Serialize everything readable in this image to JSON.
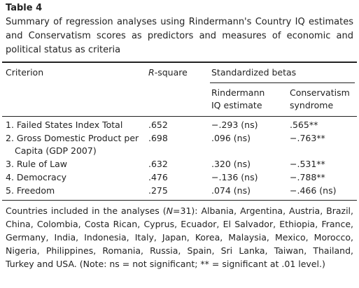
{
  "label": "Table 4",
  "caption": "Summary of regression analyses using Rindermann's Country IQ estimates and Conservatism scores as predictors and measures of economic and political status as criteria",
  "table": {
    "headers": {
      "criterion": "Criterion",
      "r_symbol": "R",
      "r_rest": "-square",
      "betas": "Standardized betas",
      "beta_iq": "Rindermann IQ estimate",
      "beta_cons": "Conservatism syndrome"
    },
    "rows": [
      [
        "1. Failed States Index Total",
        ".652",
        "−.293 (ns)",
        ".565**"
      ],
      [
        "2. Gross Domestic Product per Capita (GDP 2007)",
        ".698",
        ".096 (ns)",
        "−.763**"
      ],
      [
        "3. Rule of Law",
        ".632",
        ".320 (ns)",
        "−.531**"
      ],
      [
        "4. Democracy",
        ".476",
        "−.136 (ns)",
        "−.788**"
      ],
      [
        "5. Freedom",
        ".275",
        ".074 (ns)",
        "−.466 (ns)"
      ]
    ]
  },
  "footnote": {
    "before": "Countries included in the analyses (",
    "n_symbol": "N",
    "after": "=31): Albania, Argentina, Austria, Brazil, China, Colombia, Costa Rican, Cyprus, Ecuador, El Salvador, Ethiopia, France, Germany, India, Indonesia, Italy, Japan, Korea, Malaysia, Mexico, Morocco, Nigeria, Philippines, Romania, Russia, Spain, Sri Lanka, Taiwan, Thailand, Turkey and USA. (Note: ns = not significant; ** = significant at .01 level.)"
  }
}
